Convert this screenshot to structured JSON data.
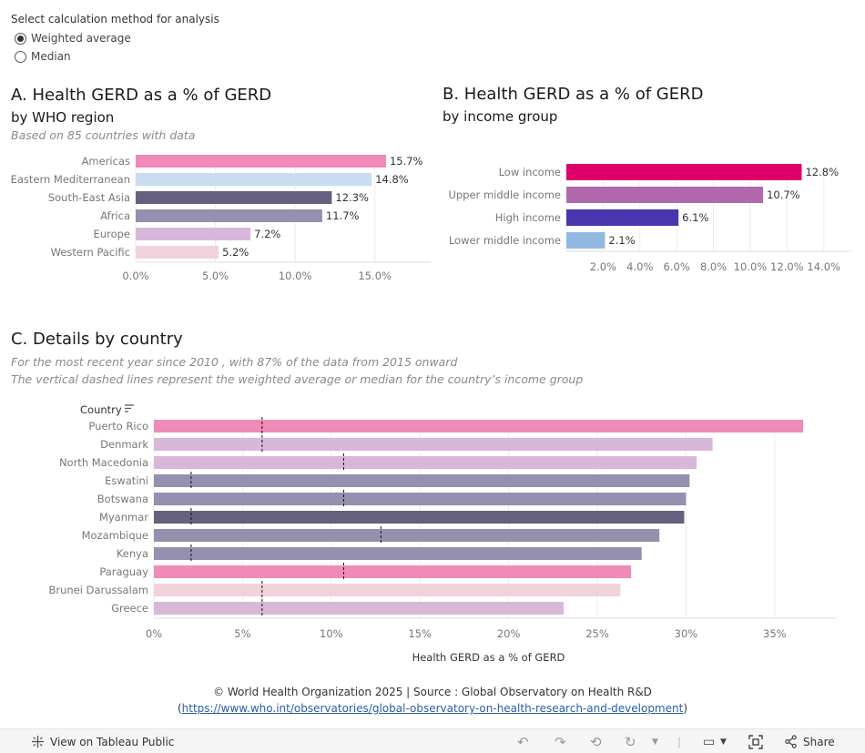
{
  "calc": {
    "label": "Select calculation method for analysis",
    "options": [
      {
        "label": "Weighted average",
        "selected": true
      },
      {
        "label": "Median",
        "selected": false
      }
    ]
  },
  "panelA": {
    "title": "A. Health GERD as a % of GERD",
    "subtitle": "by WHO region",
    "note": "Based on  85 countries with data"
  },
  "panelB": {
    "title": "B. Health GERD as a % of GERD",
    "subtitle": "by income group"
  },
  "panelC": {
    "title": "C. Details by country",
    "note1": "For the most recent year since 2010 , with 87% of the data from 2015 onward",
    "note2": "The vertical dashed lines represent the weighted average or median for the country’s income group"
  },
  "footer": {
    "line1": "© World Health Organization 2025 | Source : Global Observatory on Health R&D",
    "open_paren": "(",
    "link": "https://www.who.int/observatories/global-observatory-on-health-research-and-development",
    "close_paren": ")"
  },
  "toolbar": {
    "view_label": "View on Tableau Public",
    "share_label": "Share"
  },
  "chart_data": [
    {
      "id": "A",
      "type": "bar",
      "orientation": "horizontal",
      "categories": [
        "Americas",
        "Eastern Mediterranean",
        "South-East Asia",
        "Africa",
        "Europe",
        "Western Pacific"
      ],
      "values": [
        15.7,
        14.8,
        12.3,
        11.7,
        7.2,
        5.2
      ],
      "labels": [
        "15.7%",
        "14.8%",
        "12.3%",
        "11.7%",
        "7.2%",
        "5.2%"
      ],
      "colors": [
        "#f08ab8",
        "#c9dcf2",
        "#66607e",
        "#9490b0",
        "#d8b8d8",
        "#f0d2dc"
      ],
      "ticks": [
        0,
        5,
        10,
        15
      ],
      "tick_labels": [
        "0.0%",
        "5.0%",
        "10.0%",
        "15.0%"
      ],
      "xlim": [
        0,
        18.5
      ]
    },
    {
      "id": "B",
      "type": "bar",
      "orientation": "horizontal",
      "categories": [
        "Low income",
        "Upper middle income",
        "High income",
        "Lower middle income"
      ],
      "values": [
        12.8,
        10.7,
        6.1,
        2.1
      ],
      "labels": [
        "12.8%",
        "10.7%",
        "6.1%",
        "2.1%"
      ],
      "colors": [
        "#e0006a",
        "#b06aac",
        "#4a35b0",
        "#90b8e0"
      ],
      "ticks": [
        2,
        4,
        6,
        8,
        10,
        12,
        14
      ],
      "tick_labels": [
        "2.0%",
        "4.0%",
        "6.0%",
        "8.0%",
        "10.0%",
        "12.0%",
        "14.0%"
      ],
      "xlim": [
        0,
        15.5
      ]
    },
    {
      "id": "C",
      "type": "bar",
      "orientation": "horizontal",
      "column_header": "Country",
      "xlabel": "Health GERD as a % of GERD",
      "categories": [
        "Puerto Rico",
        "Denmark",
        "North Macedonia",
        "Eswatini",
        "Botswana",
        "Myanmar",
        "Mozambique",
        "Kenya",
        "Paraguay",
        "Brunei Darussalam",
        "Greece"
      ],
      "values": [
        36.6,
        31.5,
        30.6,
        30.2,
        30.0,
        29.9,
        28.5,
        27.5,
        26.9,
        26.3,
        23.1
      ],
      "colors": [
        "#f08ab8",
        "#d8b8d8",
        "#d8b8d8",
        "#9490b0",
        "#9490b0",
        "#66607e",
        "#9490b0",
        "#9490b0",
        "#f08ab8",
        "#f0d2dc",
        "#d8b8d8"
      ],
      "reference_lines": [
        6.1,
        6.1,
        10.7,
        2.1,
        10.7,
        2.1,
        12.8,
        2.1,
        10.7,
        6.1,
        6.1
      ],
      "ticks": [
        0,
        5,
        10,
        15,
        20,
        25,
        30,
        35
      ],
      "tick_labels": [
        "0%",
        "5%",
        "10%",
        "15%",
        "20%",
        "25%",
        "30%",
        "35%"
      ],
      "xlim": [
        0,
        38.5
      ]
    }
  ]
}
